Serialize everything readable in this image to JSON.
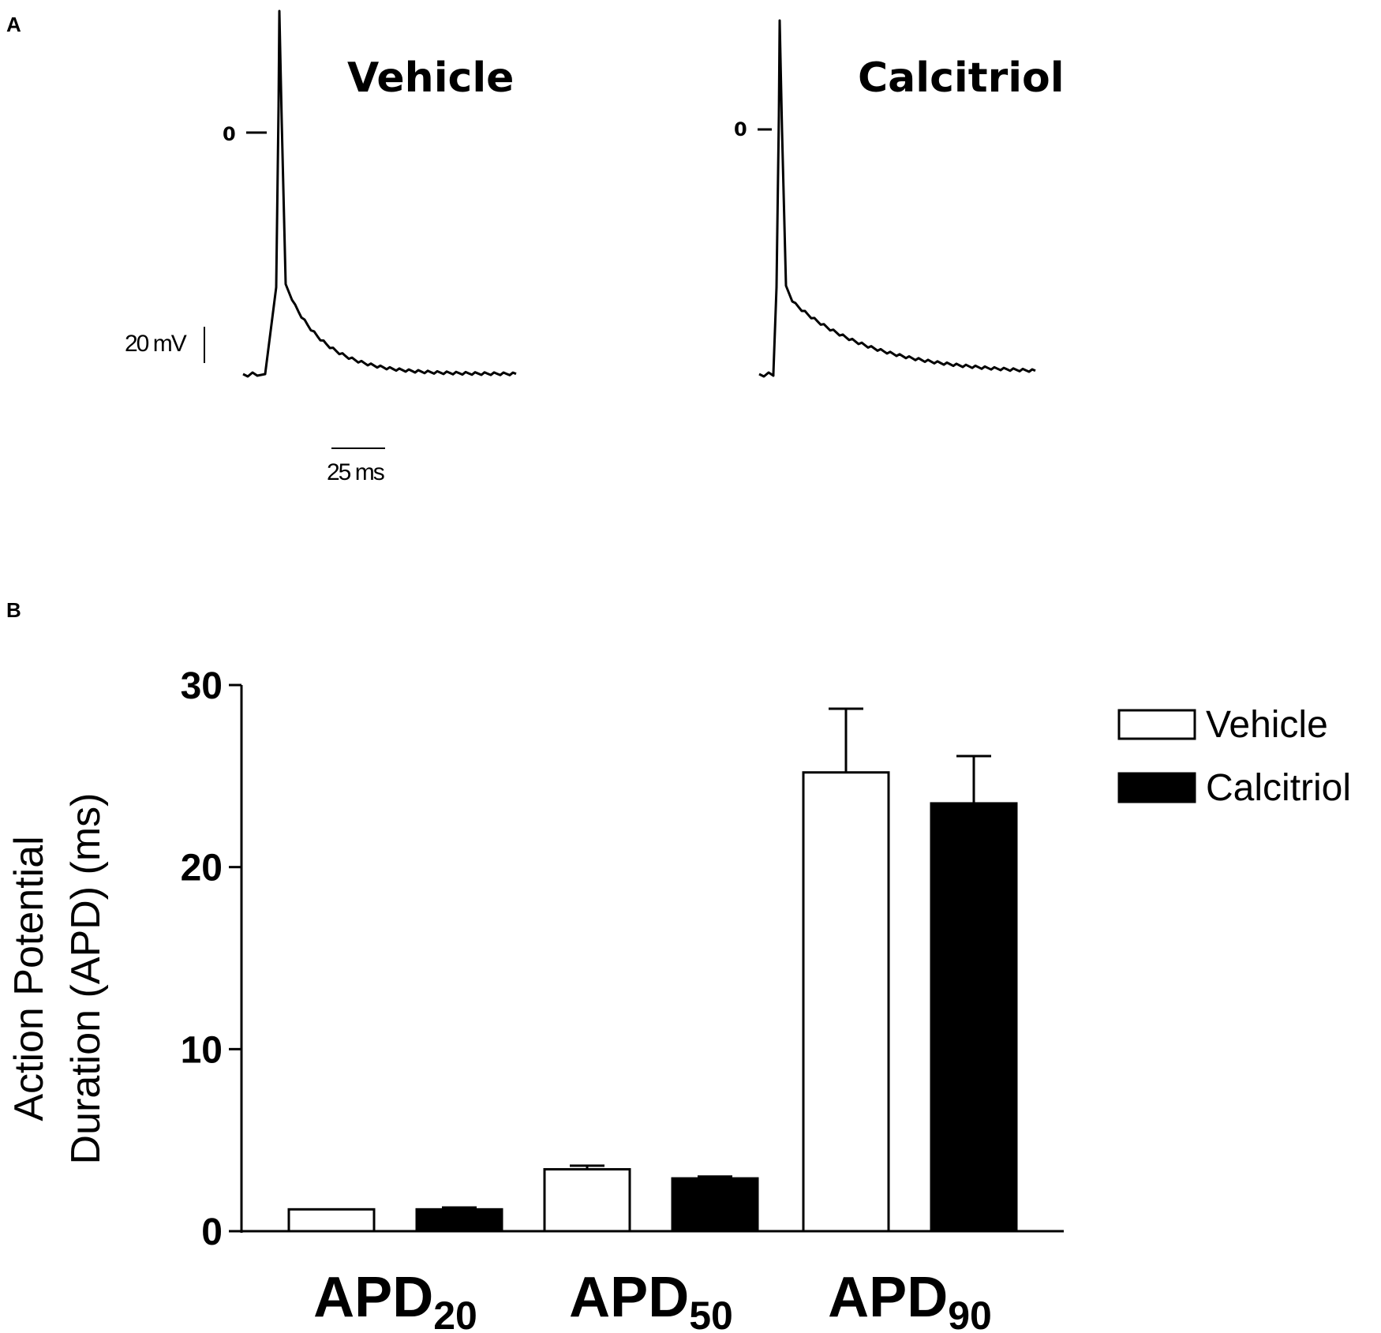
{
  "panel_a": {
    "letter": "A",
    "traces": [
      {
        "title": "Vehicle",
        "zero_label": "0"
      },
      {
        "title": "Calcitriol",
        "zero_label": "0"
      }
    ],
    "scale_voltage": "20 mV",
    "scale_time": "25 ms",
    "colors": {
      "trace": "#000000"
    }
  },
  "panel_b": {
    "letter": "B"
  },
  "chart_data": {
    "type": "bar",
    "categories": [
      {
        "main": "APD",
        "sub": "20"
      },
      {
        "main": "APD",
        "sub": "50"
      },
      {
        "main": "APD",
        "sub": "90"
      }
    ],
    "series": [
      {
        "name": "Vehicle",
        "fill": "#ffffff",
        "stroke": "#000000",
        "values": [
          1.2,
          3.4,
          25.2
        ],
        "errors": [
          0.0,
          0.2,
          3.5
        ]
      },
      {
        "name": "Calcitriol",
        "fill": "#000000",
        "stroke": "#000000",
        "values": [
          1.2,
          2.9,
          23.5
        ],
        "errors": [
          0.1,
          0.1,
          2.6
        ]
      }
    ],
    "ylabel_line1": "Action Potential",
    "ylabel_line2": "Duration (APD) (ms)",
    "ylim": [
      0,
      30
    ],
    "yticks": [
      0,
      10,
      20,
      30
    ],
    "legend_position": "top-right",
    "grid": false
  }
}
